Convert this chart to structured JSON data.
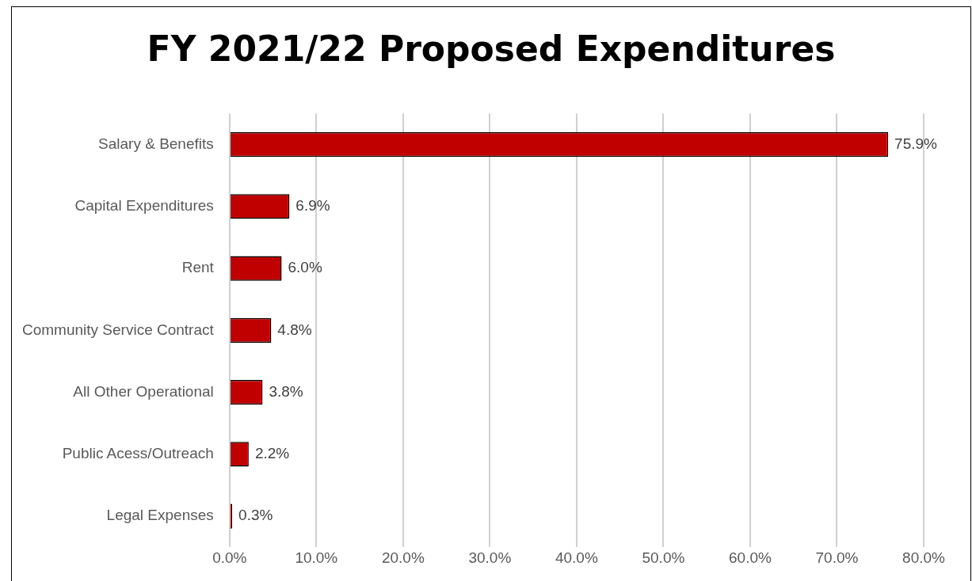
{
  "chart_data": {
    "type": "bar",
    "orientation": "horizontal",
    "title": "FY 2021/22 Proposed Expenditures",
    "categories": [
      "Salary & Benefits",
      "Capital Expenditures",
      "Rent",
      "Community Service Contract",
      "All Other Operational",
      "Public Acess/Outreach",
      "Legal Expenses"
    ],
    "values": [
      75.9,
      6.9,
      6.0,
      4.8,
      3.8,
      2.2,
      0.3
    ],
    "value_labels": [
      "75.9%",
      "6.9%",
      "6.0%",
      "4.8%",
      "3.8%",
      "2.2%",
      "0.3%"
    ],
    "color": "#c00000",
    "xlim": [
      0,
      80
    ],
    "xticks": [
      {
        "value": 0,
        "label": "0.0%"
      },
      {
        "value": 10,
        "label": "10.0%"
      },
      {
        "value": 20,
        "label": "20.0%"
      },
      {
        "value": 30,
        "label": "30.0%"
      },
      {
        "value": 40,
        "label": "40.0%"
      },
      {
        "value": 50,
        "label": "50.0%"
      },
      {
        "value": 60,
        "label": "60.0%"
      },
      {
        "value": 70,
        "label": "70.0%"
      },
      {
        "value": 80,
        "label": "80.0%"
      }
    ],
    "grid": "x"
  }
}
